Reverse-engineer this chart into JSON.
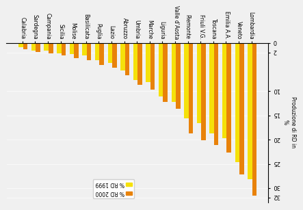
{
  "categories": [
    "Lombardia",
    "Veneto",
    "Emilia A.A.",
    "Toscana",
    "Friuli V.G.",
    "Piemonte",
    "Valle d'Aosta",
    "Liguria",
    "Marche",
    "Umbria",
    "Abruzzo",
    "Lazio",
    "Puglia",
    "Basilicata",
    "Molise",
    "Sicilia",
    "Campania",
    "Sardegna",
    "Calabria"
  ],
  "values_2000": [
    31.5,
    27.0,
    22.5,
    21.0,
    20.0,
    18.5,
    13.5,
    12.0,
    9.5,
    8.5,
    6.5,
    5.0,
    4.5,
    3.5,
    3.0,
    2.5,
    2.0,
    1.8,
    1.2
  ],
  "values_1999": [
    28.0,
    24.5,
    19.5,
    18.5,
    16.5,
    15.5,
    12.0,
    11.0,
    8.0,
    7.5,
    5.5,
    4.0,
    3.5,
    2.5,
    2.2,
    2.0,
    1.5,
    1.5,
    0.8
  ],
  "color_2000": "#E8820A",
  "color_1999": "#F5E10A",
  "ylabel": "Produzione di RD in\n%",
  "ytick_vals": [
    0,
    2,
    10,
    15,
    20,
    25,
    30,
    32
  ],
  "ytick_labels": [
    "0",
    "2",
    "10",
    "15",
    "20",
    "25",
    "30",
    "32"
  ],
  "legend_2000": "% RD 2000",
  "legend_1999": "% RD 1999",
  "bar_width": 0.35,
  "figure_bg": "#f0f0f0",
  "ax_bg": "#f0f0f0",
  "ymax": 33,
  "xlabel_fontsize": 5.5,
  "ylabel_fontsize": 5.5,
  "ytick_fontsize": 6,
  "legend_fontsize": 5.5
}
